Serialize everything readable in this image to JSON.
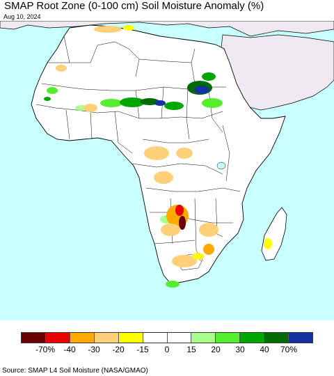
{
  "title": "SMAP Root Zone (0-100 cm) Soil Moisture Anomaly (%)",
  "date": "Aug 10, 2024",
  "source": "Source: SMAP L4 Soil Moisture (NASA/GMAO)",
  "colors": {
    "ocean": "#c8ffff",
    "land": "#ffffff",
    "outside_region": "#efeaf1",
    "border": "#000000"
  },
  "legend": {
    "colors": [
      "#6b0000",
      "#e80000",
      "#ffaa00",
      "#ffd07a",
      "#ffff00",
      "#ffffff",
      "#ffffff",
      "#aaff8c",
      "#55ee2e",
      "#00a600",
      "#006b00",
      "#1432a0"
    ],
    "labels": [
      "-70%",
      "-40",
      "-30",
      "-20",
      "-15",
      "0",
      "15",
      "20",
      "30",
      "40",
      "70%"
    ]
  }
}
